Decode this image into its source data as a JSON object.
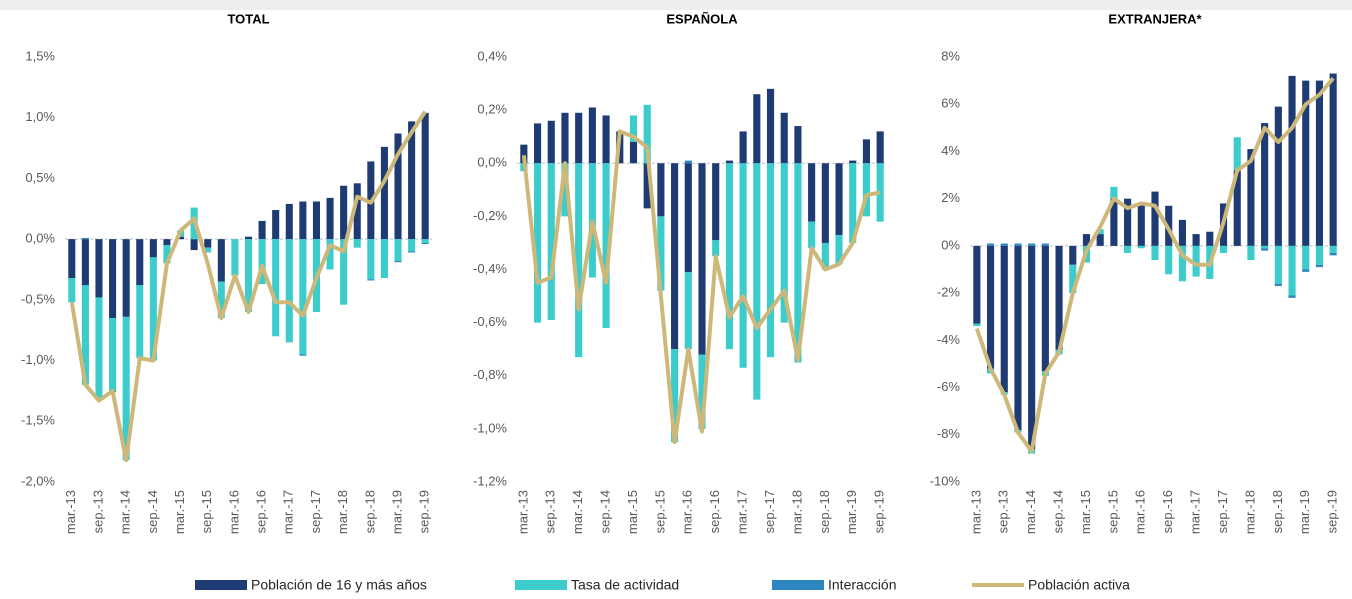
{
  "legend": [
    {
      "name": "Población de 16 y más años",
      "color": "#1f3b73",
      "type": "bar"
    },
    {
      "name": "Tasa de actividad",
      "color": "#3ccccc",
      "type": "bar"
    },
    {
      "name": "Interacción",
      "color": "#2e86c1",
      "type": "bar"
    },
    {
      "name": "Población activa",
      "color": "#cdb87a",
      "type": "line"
    }
  ],
  "chart_data": [
    {
      "type": "bar",
      "title": "TOTAL",
      "categories": [
        "mar.-13",
        null,
        "sep.-13",
        null,
        "mar.-14",
        null,
        "sep.-14",
        null,
        "mar.-15",
        null,
        "sep.-15",
        null,
        "mar.-16",
        null,
        "sep.-16",
        null,
        "mar.-17",
        null,
        "sep.-17",
        null,
        "mar.-18",
        null,
        "sep.-18",
        null,
        "mar.-19",
        null,
        "sep.-19"
      ],
      "ylim": [
        -2.0,
        1.5
      ],
      "yticks": [
        {
          "value": -2.0,
          "label": "-2,0%"
        },
        {
          "value": -1.5,
          "label": "-1,5%"
        },
        {
          "value": -1.0,
          "label": "-1,0%"
        },
        {
          "value": -0.5,
          "label": "-0,5%"
        },
        {
          "value": 0,
          "label": "0,0%"
        },
        {
          "value": 0.5,
          "label": "0,5%"
        },
        {
          "value": 1.0,
          "label": "1,0%"
        },
        {
          "value": 1.5,
          "label": "1,5%"
        }
      ],
      "series": [
        {
          "values": [
            -0.32,
            -0.38,
            -0.48,
            -0.65,
            -0.64,
            -0.38,
            -0.15,
            -0.05,
            0.02,
            -0.09,
            -0.07,
            -0.35,
            0.0,
            0.02,
            0.15,
            0.24,
            0.29,
            0.31,
            0.31,
            0.34,
            0.44,
            0.46,
            0.64,
            0.76,
            0.87,
            0.97,
            1.04
          ]
        },
        {
          "values": [
            -0.2,
            -0.82,
            -0.84,
            -0.6,
            -1.18,
            -0.6,
            -0.85,
            -0.15,
            0.05,
            0.26,
            -0.04,
            -0.3,
            -0.3,
            -0.6,
            -0.37,
            -0.8,
            -0.85,
            -0.95,
            -0.6,
            -0.25,
            -0.54,
            -0.07,
            -0.33,
            -0.32,
            -0.18,
            -0.1,
            -0.03
          ]
        },
        {
          "values": [
            0.0,
            0.01,
            0.0,
            -0.01,
            0.0,
            0.0,
            0.0,
            0.0,
            0.0,
            0.0,
            0.0,
            0.0,
            0.0,
            0.0,
            0.0,
            0.0,
            0.0,
            -0.01,
            0.0,
            0.0,
            0.0,
            0.0,
            -0.01,
            0.0,
            -0.01,
            -0.01,
            -0.01
          ]
        },
        {
          "values": [
            -0.52,
            -1.2,
            -1.33,
            -1.25,
            -1.82,
            -0.98,
            -1.0,
            -0.2,
            0.07,
            0.17,
            -0.2,
            -0.65,
            -0.3,
            -0.6,
            -0.22,
            -0.52,
            -0.52,
            -0.63,
            -0.32,
            -0.05,
            -0.1,
            0.35,
            0.3,
            0.48,
            0.7,
            0.88,
            1.05
          ]
        }
      ]
    },
    {
      "type": "bar",
      "title": "ESPAÑOLA",
      "categories": [
        "mar.-13",
        null,
        "sep.-13",
        null,
        "mar.-14",
        null,
        "sep.-14",
        null,
        "mar.-15",
        null,
        "sep.-15",
        null,
        "mar.-16",
        null,
        "sep.-16",
        null,
        "mar.-17",
        null,
        "sep.-17",
        null,
        "mar.-18",
        null,
        "sep.-18",
        null,
        "mar.-19",
        null,
        "sep.-19"
      ],
      "ylim": [
        -1.2,
        0.4
      ],
      "yticks": [
        {
          "value": -1.2,
          "label": "-1,2%"
        },
        {
          "value": -1.0,
          "label": "-1,0%"
        },
        {
          "value": -0.8,
          "label": "-0,8%"
        },
        {
          "value": -0.6,
          "label": "-0,6%"
        },
        {
          "value": -0.4,
          "label": "-0,4%"
        },
        {
          "value": -0.2,
          "label": "-0,2%"
        },
        {
          "value": 0,
          "label": "0,0%"
        },
        {
          "value": 0.2,
          "label": "0,2%"
        },
        {
          "value": 0.4,
          "label": "0,4%"
        }
      ],
      "series": [
        {
          "values": [
            0.07,
            0.15,
            0.16,
            0.19,
            0.19,
            0.21,
            0.18,
            0.12,
            0.08,
            -0.17,
            -0.2,
            -0.7,
            -0.41,
            -0.72,
            -0.29,
            0.01,
            0.12,
            0.26,
            0.28,
            0.19,
            0.14,
            -0.22,
            -0.3,
            -0.27,
            0.01,
            0.09,
            0.12
          ]
        },
        {
          "values": [
            -0.03,
            -0.6,
            -0.59,
            -0.2,
            -0.73,
            -0.43,
            -0.62,
            0.0,
            0.1,
            0.22,
            -0.28,
            -0.35,
            -0.29,
            -0.28,
            -0.06,
            -0.7,
            -0.77,
            -0.89,
            -0.73,
            -0.6,
            -0.75,
            -0.1,
            -0.1,
            -0.11,
            -0.3,
            -0.2,
            -0.22
          ]
        },
        {
          "values": [
            0.0,
            0.0,
            0.0,
            0.0,
            0.0,
            0.0,
            0.0,
            0.0,
            0.0,
            0.0,
            0.0,
            0.0,
            0.01,
            0.0,
            0.0,
            0.0,
            0.0,
            0.0,
            0.0,
            0.0,
            0.0,
            0.0,
            0.0,
            0.0,
            0.0,
            0.0,
            0.0
          ]
        },
        {
          "values": [
            0.03,
            -0.45,
            -0.43,
            0.0,
            -0.55,
            -0.22,
            -0.45,
            0.12,
            0.1,
            0.06,
            -0.5,
            -1.05,
            -0.7,
            -1.01,
            -0.35,
            -0.58,
            -0.5,
            -0.62,
            -0.55,
            -0.48,
            -0.74,
            -0.32,
            -0.4,
            -0.38,
            -0.3,
            -0.12,
            -0.11
          ]
        }
      ]
    },
    {
      "type": "bar",
      "title": "EXTRANJERA*",
      "categories": [
        "mar.-13",
        null,
        "sep.-13",
        null,
        "mar.-14",
        null,
        "sep.-14",
        null,
        "mar.-15",
        null,
        "sep.-15",
        null,
        "mar.-16",
        null,
        "sep.-16",
        null,
        "mar.-17",
        null,
        "sep.-17",
        null,
        "mar.-18",
        null,
        "sep.-18",
        null,
        "mar.-19",
        null,
        "sep.-19"
      ],
      "ylim": [
        -10,
        8
      ],
      "yticks": [
        {
          "value": -10,
          "label": "-10%"
        },
        {
          "value": -8,
          "label": "-8%"
        },
        {
          "value": -6,
          "label": "-6%"
        },
        {
          "value": -4,
          "label": "-4%"
        },
        {
          "value": -2,
          "label": "-2%"
        },
        {
          "value": 0,
          "label": "0%"
        },
        {
          "value": 2,
          "label": "2%"
        },
        {
          "value": 4,
          "label": "4%"
        },
        {
          "value": 6,
          "label": "6%"
        },
        {
          "value": 8,
          "label": "8%"
        }
      ],
      "series": [
        {
          "values": [
            -3.3,
            -5.2,
            -6.2,
            -7.8,
            -8.6,
            -5.3,
            -4.4,
            -0.8,
            0.5,
            0.5,
            2.0,
            2.0,
            1.8,
            2.3,
            1.7,
            1.1,
            0.5,
            0.6,
            1.8,
            3.2,
            4.1,
            5.2,
            5.9,
            7.2,
            7.0,
            7.0,
            7.3
          ]
        },
        {
          "values": [
            -0.1,
            -0.2,
            -0.1,
            -0.1,
            -0.2,
            -0.2,
            -0.2,
            -1.2,
            -0.7,
            0.2,
            0.5,
            -0.3,
            -0.1,
            -0.6,
            -1.2,
            -1.5,
            -1.3,
            -1.4,
            -0.3,
            1.4,
            -0.6,
            -0.1,
            -1.6,
            -2.1,
            -1.0,
            -0.8,
            -0.3
          ]
        },
        {
          "values": [
            0.0,
            0.1,
            0.1,
            0.1,
            0.1,
            0.1,
            0.0,
            0.0,
            0.0,
            0.0,
            0.0,
            0.0,
            0.0,
            0.0,
            0.0,
            0.0,
            0.0,
            0.0,
            0.0,
            0.0,
            0.0,
            -0.1,
            -0.1,
            -0.1,
            -0.1,
            -0.1,
            -0.1
          ]
        },
        {
          "values": [
            -3.5,
            -5.2,
            -6.3,
            -7.9,
            -8.7,
            -5.4,
            -4.5,
            -2.0,
            -0.2,
            0.8,
            2.0,
            1.6,
            1.8,
            1.7,
            0.7,
            -0.4,
            -0.8,
            -0.8,
            1.0,
            3.2,
            3.6,
            5.0,
            4.4,
            5.0,
            6.0,
            6.4,
            7.1
          ]
        }
      ]
    }
  ]
}
